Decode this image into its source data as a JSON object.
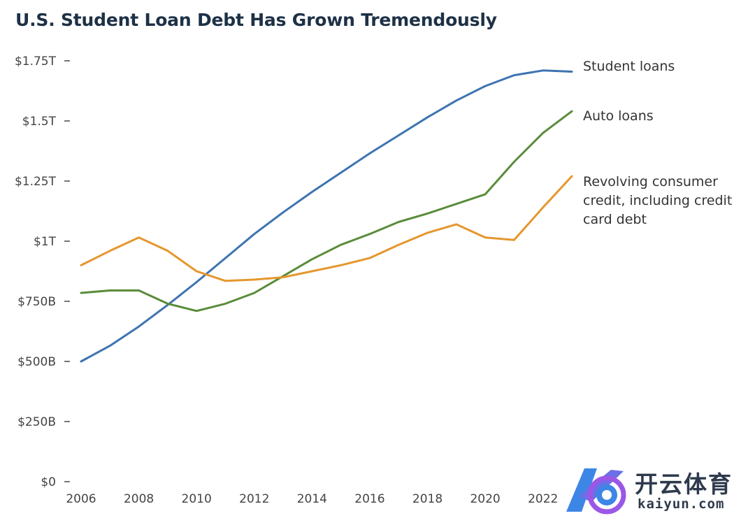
{
  "chart_data": {
    "type": "line",
    "title": "U.S. Student Loan Debt Has Grown Tremendously",
    "xlabel": "",
    "ylabel": "",
    "xlim": [
      2006,
      2023
    ],
    "ylim": [
      0,
      1.75
    ],
    "x_ticks": [
      2006,
      2008,
      2010,
      2012,
      2014,
      2016,
      2018,
      2020,
      2022
    ],
    "x_tick_labels": [
      "2006",
      "2008",
      "2010",
      "2012",
      "2014",
      "2016",
      "2018",
      "2020",
      "2022"
    ],
    "y_ticks": [
      0,
      0.25,
      0.5,
      0.75,
      1.0,
      1.25,
      1.5,
      1.75
    ],
    "y_tick_labels": [
      "$0",
      "$250B",
      "$500B",
      "$750B",
      "$1T",
      "$1.25T",
      "$1.5T",
      "$1.75T"
    ],
    "y_unit": "trillions of USD",
    "grid": false,
    "legend": "direct labels at line ends (right)",
    "x": [
      2006,
      2007,
      2008,
      2009,
      2010,
      2011,
      2012,
      2013,
      2014,
      2015,
      2016,
      2017,
      2018,
      2019,
      2020,
      2021,
      2022,
      2023
    ],
    "series": [
      {
        "name": "Student loans",
        "color": "#3d74b0",
        "values": [
          0.5,
          0.565,
          0.645,
          0.735,
          0.83,
          0.93,
          1.03,
          1.12,
          1.205,
          1.285,
          1.365,
          1.44,
          1.515,
          1.585,
          1.645,
          1.69,
          1.71,
          1.705
        ]
      },
      {
        "name": "Auto loans",
        "color": "#5a8c3a",
        "values": [
          0.785,
          0.795,
          0.795,
          0.74,
          0.71,
          0.74,
          0.785,
          0.855,
          0.925,
          0.985,
          1.03,
          1.08,
          1.115,
          1.155,
          1.195,
          1.33,
          1.45,
          1.54
        ]
      },
      {
        "name": "Revolving consumer credit, including credit card debt",
        "label_lines": [
          "Revolving consumer",
          "credit, including credit",
          "card debt"
        ],
        "color": "#e5972e",
        "values": [
          0.9,
          0.96,
          1.015,
          0.96,
          0.875,
          0.835,
          0.84,
          0.85,
          0.875,
          0.9,
          0.93,
          0.985,
          1.035,
          1.07,
          1.015,
          1.005,
          1.14,
          1.27
        ]
      }
    ]
  },
  "watermark": {
    "name": "开云体育",
    "domain": "kaiyun.com",
    "ring_color": "#3d86e6",
    "accent_color": "#9b57e6"
  }
}
